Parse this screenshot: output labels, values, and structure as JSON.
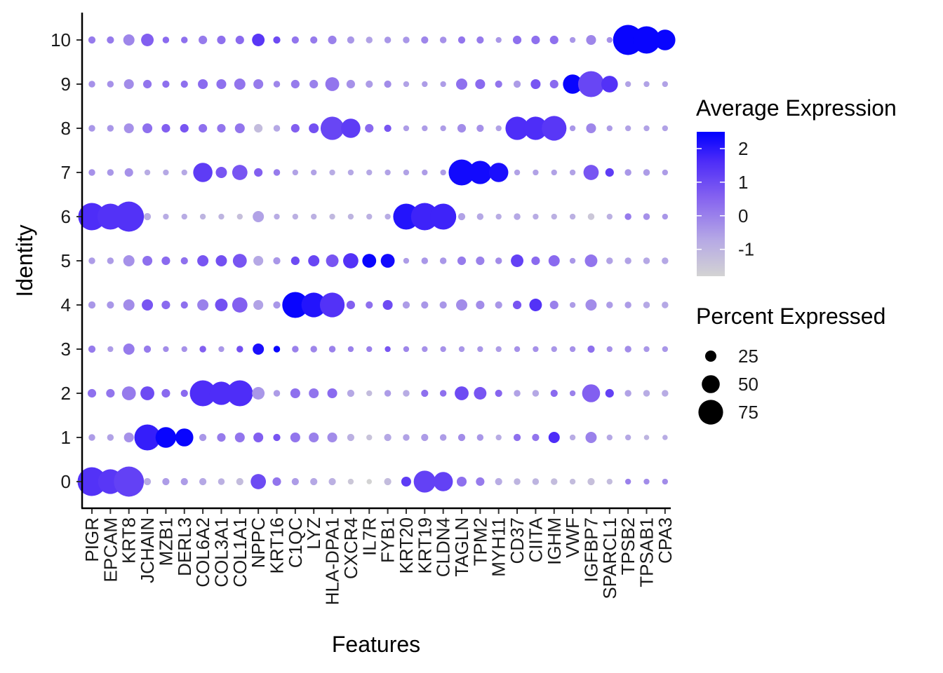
{
  "chart_data": {
    "type": "dotplot",
    "xlabel": "Features",
    "ylabel": "Identity",
    "features": [
      "PIGR",
      "EPCAM",
      "KRT8",
      "JCHAIN",
      "MZB1",
      "DERL3",
      "COL6A2",
      "COL3A1",
      "COL1A1",
      "NPPC",
      "KRT16",
      "C1QC",
      "LYZ",
      "HLA-DPA1",
      "CXCR4",
      "IL7R",
      "FYB1",
      "KRT20",
      "KRT19",
      "CLDN4",
      "TAGLN",
      "TPM2",
      "MYH11",
      "CD37",
      "CIITA",
      "IGHM",
      "VWF",
      "IGFBP7",
      "SPARCL1",
      "TPSB2",
      "TPSAB1",
      "CPA3"
    ],
    "identities": [
      "0",
      "1",
      "2",
      "3",
      "4",
      "5",
      "6",
      "7",
      "8",
      "9",
      "10"
    ],
    "color_scale": {
      "title": "Average Expression",
      "low_color": "#d3d3d3",
      "high_color": "#0000ff",
      "range": [
        -1.8,
        2.5
      ],
      "ticks": [
        -1,
        0,
        1,
        2
      ]
    },
    "size_scale": {
      "title": "Percent Expressed",
      "legend_values": [
        25,
        50,
        75
      ],
      "legend_labels": [
        "25",
        "50",
        "75"
      ]
    },
    "percent_expressed": [
      [
        90,
        75,
        95,
        10,
        10,
        10,
        10,
        8,
        10,
        40,
        15,
        10,
        10,
        10,
        5,
        3,
        10,
        20,
        65,
        55,
        20,
        15,
        10,
        8,
        8,
        8,
        5,
        10,
        5,
        5,
        5,
        5
      ],
      [
        8,
        8,
        20,
        80,
        60,
        50,
        10,
        15,
        20,
        20,
        10,
        20,
        20,
        20,
        10,
        5,
        10,
        8,
        10,
        8,
        10,
        8,
        5,
        10,
        10,
        25,
        5,
        25,
        5,
        5,
        3,
        3
      ],
      [
        15,
        15,
        35,
        35,
        15,
        10,
        80,
        70,
        80,
        30,
        8,
        20,
        20,
        20,
        10,
        5,
        8,
        8,
        10,
        8,
        35,
        30,
        10,
        8,
        8,
        10,
        5,
        50,
        15,
        8,
        8,
        8
      ],
      [
        10,
        5,
        25,
        10,
        5,
        5,
        8,
        5,
        8,
        25,
        8,
        8,
        8,
        8,
        5,
        5,
        5,
        5,
        5,
        5,
        5,
        5,
        5,
        5,
        5,
        5,
        5,
        10,
        5,
        8,
        5,
        5
      ],
      [
        10,
        10,
        25,
        25,
        15,
        10,
        25,
        30,
        40,
        20,
        10,
        80,
        75,
        75,
        15,
        10,
        20,
        10,
        10,
        10,
        25,
        15,
        10,
        15,
        30,
        15,
        5,
        25,
        8,
        8,
        8,
        8
      ],
      [
        8,
        8,
        25,
        20,
        15,
        10,
        25,
        25,
        35,
        20,
        10,
        15,
        25,
        30,
        40,
        35,
        35,
        5,
        8,
        8,
        15,
        15,
        8,
        30,
        15,
        25,
        5,
        30,
        8,
        8,
        8,
        8
      ],
      [
        85,
        80,
        95,
        10,
        5,
        5,
        5,
        5,
        5,
        25,
        5,
        5,
        5,
        5,
        5,
        5,
        5,
        80,
        85,
        80,
        10,
        8,
        5,
        8,
        5,
        5,
        5,
        8,
        5,
        8,
        8,
        5
      ],
      [
        8,
        8,
        15,
        5,
        5,
        5,
        55,
        25,
        40,
        15,
        8,
        5,
        5,
        5,
        5,
        5,
        5,
        5,
        5,
        5,
        80,
        70,
        55,
        5,
        5,
        5,
        5,
        40,
        15,
        8,
        8,
        5
      ],
      [
        8,
        8,
        20,
        20,
        15,
        15,
        15,
        15,
        20,
        15,
        8,
        15,
        20,
        70,
        55,
        15,
        10,
        5,
        5,
        5,
        15,
        10,
        5,
        70,
        70,
        75,
        5,
        20,
        5,
        5,
        5,
        5
      ],
      [
        8,
        8,
        20,
        15,
        10,
        10,
        20,
        20,
        25,
        20,
        8,
        15,
        15,
        35,
        15,
        10,
        10,
        5,
        5,
        5,
        25,
        20,
        10,
        10,
        20,
        15,
        55,
        80,
        45,
        5,
        5,
        5
      ],
      [
        10,
        10,
        25,
        30,
        8,
        8,
        15,
        15,
        15,
        30,
        10,
        10,
        10,
        15,
        10,
        8,
        8,
        8,
        10,
        8,
        10,
        10,
        5,
        15,
        15,
        15,
        5,
        20,
        5,
        95,
        85,
        60
      ]
    ],
    "average_expression": [
      [
        1.5,
        1.4,
        1.2,
        -0.8,
        -0.5,
        -0.5,
        -0.7,
        -0.9,
        -1.2,
        1.0,
        0.2,
        -0.5,
        -0.7,
        -0.9,
        -1.5,
        -1.8,
        -1.2,
        1.3,
        1.2,
        1.2,
        0.3,
        0.1,
        -0.8,
        -1.0,
        -1.0,
        -1.2,
        -1.2,
        -1.3,
        -1.2,
        0.0,
        -0.2,
        -0.2
      ],
      [
        -0.5,
        -0.6,
        -0.3,
        1.9,
        2.4,
        2.4,
        -0.4,
        0.1,
        0.2,
        0.6,
        0.8,
        0.2,
        0.0,
        -0.2,
        -0.9,
        -1.4,
        -0.7,
        -0.6,
        -0.5,
        -0.5,
        -0.2,
        -0.4,
        -0.8,
        0.3,
        0.2,
        1.6,
        -0.8,
        0.0,
        -0.7,
        -0.7,
        -1.0,
        -0.8
      ],
      [
        0.3,
        0.2,
        0.1,
        1.0,
        0.4,
        0.4,
        1.6,
        1.6,
        1.6,
        -0.4,
        -0.5,
        0.3,
        0.2,
        0.4,
        -0.7,
        -1.2,
        -0.5,
        -0.8,
        0.3,
        0.3,
        1.0,
        0.8,
        0.5,
        -0.6,
        -0.7,
        0.4,
        0.0,
        0.6,
        1.2,
        -0.6,
        -0.8,
        -0.8
      ],
      [
        0.1,
        -0.5,
        0.1,
        0.1,
        -0.2,
        -0.3,
        0.6,
        -0.4,
        0.9,
        2.2,
        2.4,
        0.0,
        -0.1,
        0.0,
        0.0,
        0.0,
        0.8,
        -0.1,
        -0.3,
        -0.3,
        -0.4,
        -0.4,
        -0.5,
        -0.3,
        -0.3,
        -0.4,
        -0.3,
        0.3,
        -0.3,
        -0.2,
        -0.4,
        -0.4
      ],
      [
        -0.4,
        -0.4,
        -0.2,
        0.8,
        0.4,
        0.3,
        0.0,
        0.9,
        0.6,
        -0.6,
        -0.4,
        2.4,
        2.1,
        1.5,
        0.6,
        0.3,
        1.0,
        -0.5,
        -0.4,
        -0.4,
        -0.2,
        -0.2,
        -0.4,
        0.8,
        1.5,
        0.0,
        -0.5,
        -0.2,
        -0.5,
        -0.5,
        -0.7,
        -0.7
      ],
      [
        -0.5,
        -0.5,
        -0.3,
        0.3,
        0.4,
        0.3,
        0.8,
        0.9,
        0.8,
        -0.7,
        -0.4,
        1.0,
        1.1,
        0.8,
        1.5,
        2.4,
        2.3,
        -0.5,
        -0.4,
        -0.4,
        0.1,
        0.0,
        -0.2,
        1.2,
        0.4,
        0.4,
        -0.4,
        0.2,
        -0.6,
        -0.6,
        -0.7,
        -0.7
      ],
      [
        1.6,
        1.5,
        1.5,
        -0.8,
        -0.8,
        -0.8,
        -1.0,
        -1.0,
        -1.3,
        -0.6,
        -0.8,
        -0.9,
        -0.9,
        -1.1,
        -1.0,
        -0.9,
        -0.8,
        2.1,
        1.8,
        1.8,
        -0.6,
        -0.7,
        -0.8,
        -0.7,
        -0.8,
        -0.9,
        -0.9,
        -1.5,
        -0.9,
        0.1,
        -0.3,
        -0.4
      ],
      [
        -0.3,
        -0.4,
        -0.3,
        -0.8,
        -0.7,
        -0.7,
        1.3,
        0.8,
        0.8,
        0.6,
        0.1,
        -0.6,
        -0.6,
        -0.8,
        -0.7,
        -0.7,
        -0.6,
        -0.6,
        -0.5,
        -0.5,
        2.3,
        2.3,
        2.2,
        -0.6,
        -0.6,
        -0.6,
        -0.6,
        0.8,
        1.3,
        -0.4,
        -0.5,
        -0.5
      ],
      [
        -0.4,
        -0.4,
        -0.3,
        0.3,
        0.6,
        0.8,
        0.3,
        0.2,
        0.2,
        -1.2,
        -0.7,
        0.6,
        0.9,
        1.1,
        1.3,
        0.4,
        0.8,
        -0.5,
        -0.5,
        -0.5,
        -0.2,
        -0.3,
        -0.6,
        1.6,
        1.6,
        1.4,
        -0.4,
        -0.1,
        -0.5,
        -0.6,
        -0.6,
        -0.6
      ],
      [
        -0.3,
        -0.3,
        -0.2,
        0.2,
        0.3,
        0.3,
        0.4,
        0.3,
        0.2,
        0.1,
        -0.1,
        0.1,
        0.0,
        0.2,
        -0.3,
        -0.5,
        -0.2,
        -0.6,
        -0.5,
        -0.5,
        0.3,
        0.4,
        0.2,
        -0.5,
        0.8,
        0.4,
        2.4,
        1.1,
        1.5,
        -0.6,
        -0.6,
        -0.6
      ],
      [
        0.1,
        0.1,
        -0.1,
        0.6,
        0.4,
        0.3,
        0.1,
        0.3,
        0.4,
        1.4,
        1.0,
        0.2,
        0.1,
        0.0,
        -0.4,
        -0.6,
        -0.4,
        -0.4,
        -0.1,
        -0.3,
        0.2,
        0.1,
        -0.4,
        0.3,
        0.3,
        0.3,
        -0.4,
        -0.1,
        -0.3,
        2.4,
        2.4,
        2.4
      ]
    ]
  }
}
